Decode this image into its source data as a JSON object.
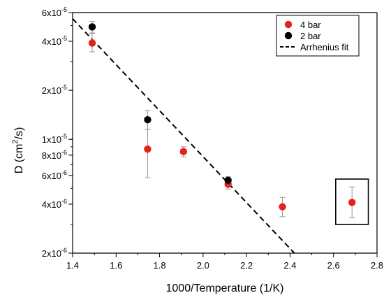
{
  "chart_data": {
    "type": "scatter",
    "title": "",
    "xlabel": "1000/Temperature (1/K)",
    "ylabel": "D (cm",
    "ylabel_sup": "2",
    "ylabel_tail": "/s)",
    "xlim": [
      1.4,
      2.8
    ],
    "ylim": [
      2e-06,
      6e-05
    ],
    "yscale": "log",
    "x_ticks": [
      1.4,
      1.6,
      1.8,
      2.0,
      2.2,
      2.4,
      2.6,
      2.8
    ],
    "x_tick_labels": [
      "1.4",
      "1.6",
      "1.8",
      "2.0",
      "2.2",
      "2.4",
      "2.6",
      "2.8"
    ],
    "y_ticks": [
      {
        "value": 2e-06,
        "mantissa": "2x10",
        "exp": "-6"
      },
      {
        "value": 4e-06,
        "mantissa": "4x10",
        "exp": "-6"
      },
      {
        "value": 6e-06,
        "mantissa": "6x10",
        "exp": "-6"
      },
      {
        "value": 8e-06,
        "mantissa": "8x10",
        "exp": "-6"
      },
      {
        "value": 1e-05,
        "mantissa": "1x10",
        "exp": "-5"
      },
      {
        "value": 2e-05,
        "mantissa": "2x10",
        "exp": "-5"
      },
      {
        "value": 4e-05,
        "mantissa": "4x10",
        "exp": "-5"
      },
      {
        "value": 6e-05,
        "mantissa": "6x10",
        "exp": "-5"
      }
    ],
    "grid": false,
    "legend_position": "top-right",
    "series": [
      {
        "name": "4 bar",
        "color": "#e8201c",
        "points": [
          {
            "x": 1.49,
            "y": 3.9e-05,
            "ylow": 3.45e-05,
            "yhigh": 4.45e-05
          },
          {
            "x": 1.745,
            "y": 8.7e-06,
            "ylow": 5.8e-06,
            "yhigh": 1.15e-05
          },
          {
            "x": 1.91,
            "y": 8.4e-06,
            "ylow": 7.8e-06,
            "yhigh": 9e-06
          },
          {
            "x": 2.115,
            "y": 5.3e-06,
            "ylow": 4.95e-06,
            "yhigh": 5.65e-06
          },
          {
            "x": 2.365,
            "y": 3.85e-06,
            "ylow": 3.35e-06,
            "yhigh": 4.4e-06
          },
          {
            "x": 2.685,
            "y": 4.1e-06,
            "ylow": 3.3e-06,
            "yhigh": 5.1e-06
          }
        ]
      },
      {
        "name": "2 bar",
        "color": "#000000",
        "points": [
          {
            "x": 1.49,
            "y": 4.9e-05,
            "ylow": 4.5e-05,
            "yhigh": 5.3e-05
          },
          {
            "x": 1.745,
            "y": 1.32e-05,
            "ylow": 1.15e-05,
            "yhigh": 1.5e-05
          },
          {
            "x": 2.115,
            "y": 5.6e-06,
            "ylow": 5.3e-06,
            "yhigh": 5.9e-06
          }
        ]
      }
    ],
    "fit": {
      "name": "Arrhenius fit",
      "color": "#000000",
      "dash": "dashed",
      "x": [
        1.4,
        2.42
      ],
      "y": [
        5.5e-05,
        2e-06
      ]
    },
    "highlight_box": {
      "x": [
        2.61,
        2.76
      ],
      "y": [
        3e-06,
        5.7e-06
      ]
    },
    "errorbar_color": "#a09090"
  }
}
